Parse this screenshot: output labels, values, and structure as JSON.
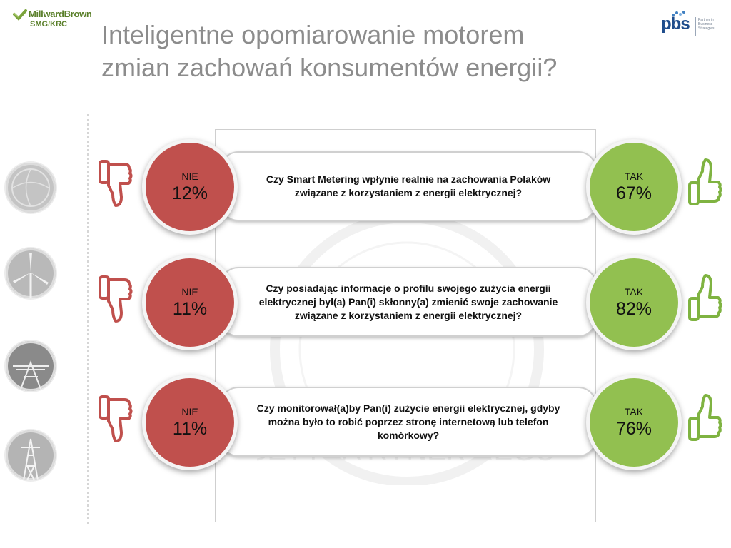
{
  "logos": {
    "left_name": "MillwardBrown",
    "left_sub_a": "SMG",
    "left_sub_sep": "/",
    "left_sub_b": "KRC",
    "right_name": "pbs",
    "right_tagline": "Partner in Business Strategies"
  },
  "title": {
    "line1": "Inteligentne opomiarowanie motorem",
    "line2": "zmian zachowań konsumentów energii?"
  },
  "watermark_text": "ENERGETYKA RYNEK REGULATOR",
  "questions": [
    {
      "text": "Czy Smart Metering wpłynie realnie na zachowania Polaków związane z korzystaniem z energii elektrycznej?",
      "no_label": "NIE",
      "no_value": "12%",
      "yes_label": "TAK",
      "yes_value": "67%"
    },
    {
      "text": "Czy posiadając informacje o profilu swojego zużycia energii elektrycznej był(a) Pan(i) skłonny(a) zmienić swoje zachowanie związane z korzystaniem z energii elektrycznej?",
      "no_label": "NIE",
      "no_value": "11%",
      "yes_label": "TAK",
      "yes_value": "82%"
    },
    {
      "text": "Czy monitorował(a)by Pan(i) zużycie energii elektrycznej, gdyby można było to robić poprzez stronę internetową lub telefon komórkowy?",
      "no_label": "NIE",
      "no_value": "11%",
      "yes_label": "TAK",
      "yes_value": "76%"
    }
  ],
  "icons": {
    "no": "thumbs-down-icon",
    "yes": "thumbs-up-icon"
  },
  "colors": {
    "no": "#c0504d",
    "yes": "#92c050",
    "title": "#8c8c8c",
    "brand_left": "#5a7f2a",
    "brand_right": "#1f4d8c"
  }
}
